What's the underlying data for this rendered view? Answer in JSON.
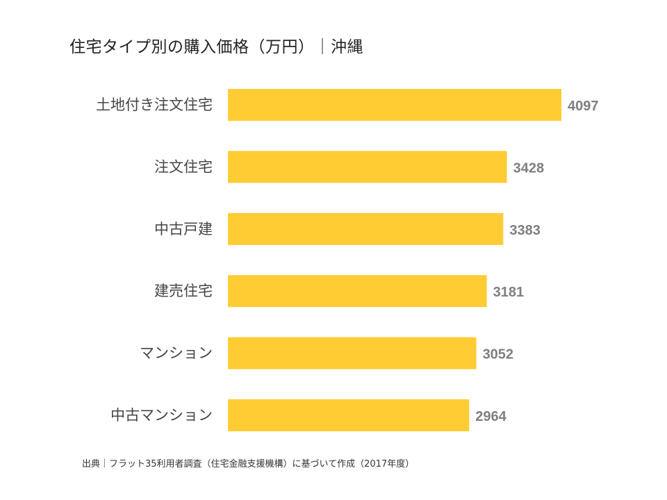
{
  "chart_data": {
    "type": "bar",
    "orientation": "horizontal",
    "title": "住宅タイプ別の購入価格（万円）｜沖縄",
    "categories": [
      "土地付き注文住宅",
      "注文住宅",
      "中古戸建",
      "建売住宅",
      "マンション",
      "中古マンション"
    ],
    "values": [
      4097,
      3428,
      3383,
      3181,
      3052,
      2964
    ],
    "data_labels": [
      "4097",
      "3428",
      "3383",
      "3181",
      "3052",
      "2964"
    ],
    "xlabel": "",
    "ylabel": "",
    "xlim": [
      0,
      4097
    ],
    "grid": false,
    "bar_color": "#FFCC33",
    "label_color": "#7F7F7F"
  },
  "footer": "出典｜フラット35利用者調査（住宅金融支援機構）に基づいて作成（2017年度）"
}
